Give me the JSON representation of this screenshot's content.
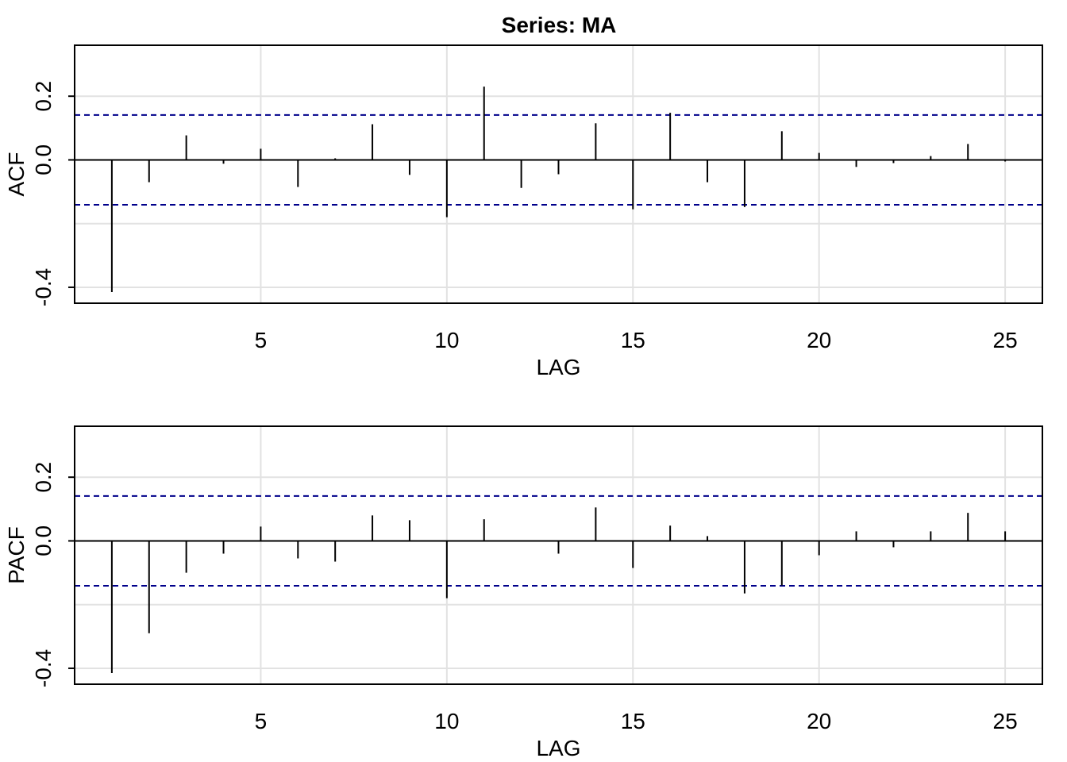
{
  "title": "Series:  MA",
  "chart_data": [
    {
      "type": "bar",
      "style": "lollipop-spikes",
      "ylabel": "ACF",
      "xlabel": "LAG",
      "xlim": [
        0,
        26
      ],
      "ylim": [
        -0.45,
        0.36
      ],
      "x_ticks": [
        5,
        10,
        15,
        20,
        25
      ],
      "y_ticks": [
        "-0.4",
        "0.0",
        "0.2"
      ],
      "grid": true,
      "confidence_band": [
        -0.141,
        0.141
      ],
      "band_color": "#00008B",
      "lags": [
        1,
        2,
        3,
        4,
        5,
        6,
        7,
        8,
        9,
        10,
        11,
        12,
        13,
        14,
        15,
        16,
        17,
        18,
        19,
        20,
        21,
        22,
        23,
        24,
        25
      ],
      "values": [
        -0.415,
        -0.07,
        0.077,
        -0.012,
        0.035,
        -0.085,
        0.005,
        0.112,
        -0.047,
        -0.18,
        0.23,
        -0.088,
        -0.045,
        0.115,
        -0.155,
        0.148,
        -0.07,
        -0.148,
        0.09,
        0.022,
        -0.022,
        -0.01,
        0.012,
        0.05,
        -0.005
      ]
    },
    {
      "type": "bar",
      "style": "lollipop-spikes",
      "ylabel": "PACF",
      "xlabel": "LAG",
      "xlim": [
        0,
        26
      ],
      "ylim": [
        -0.45,
        0.36
      ],
      "x_ticks": [
        5,
        10,
        15,
        20,
        25
      ],
      "y_ticks": [
        "-0.4",
        "0.0",
        "0.2"
      ],
      "grid": true,
      "confidence_band": [
        -0.141,
        0.141
      ],
      "band_color": "#00008B",
      "lags": [
        1,
        2,
        3,
        4,
        5,
        6,
        7,
        8,
        9,
        10,
        11,
        12,
        13,
        14,
        15,
        16,
        17,
        18,
        19,
        20,
        21,
        22,
        23,
        24,
        25
      ],
      "values": [
        -0.415,
        -0.29,
        -0.1,
        -0.04,
        0.045,
        -0.055,
        -0.065,
        0.08,
        0.065,
        -0.18,
        0.068,
        0.0,
        -0.04,
        0.105,
        -0.085,
        0.048,
        0.015,
        -0.165,
        -0.14,
        -0.045,
        0.03,
        -0.02,
        0.03,
        0.088,
        0.03
      ]
    }
  ]
}
